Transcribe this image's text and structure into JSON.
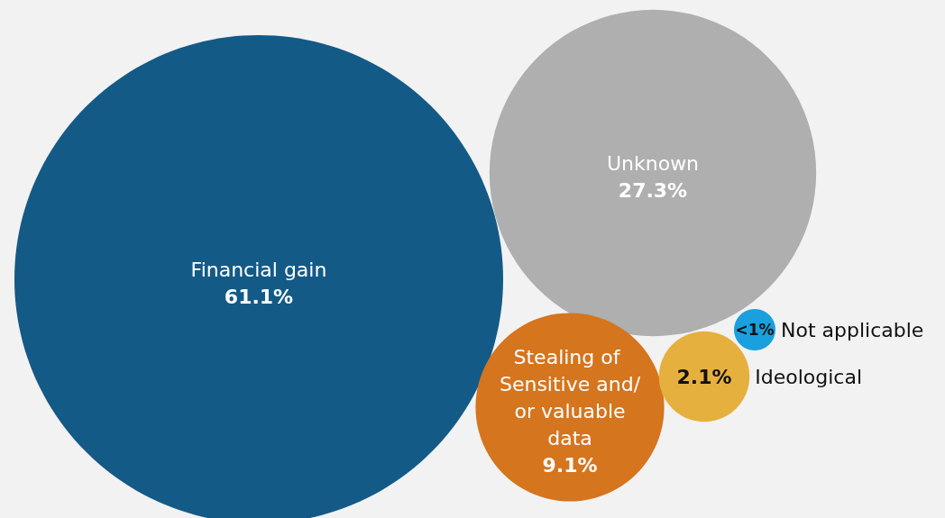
{
  "chart_data": {
    "type": "other",
    "categories": [
      "Financial gain",
      "Unknown",
      "Stealing of Sensitive and/ or valuable data",
      "Ideological",
      "Not applicable"
    ],
    "values": [
      61.1,
      27.3,
      9.1,
      2.1,
      null
    ],
    "value_labels": [
      "61.1%",
      "27.3%",
      "9.1%",
      "2.1%",
      "<1%"
    ],
    "colors": [
      "#135a87",
      "#aeafae",
      "#d5751e",
      "#e6b03f",
      "#1aa0de"
    ]
  }
}
